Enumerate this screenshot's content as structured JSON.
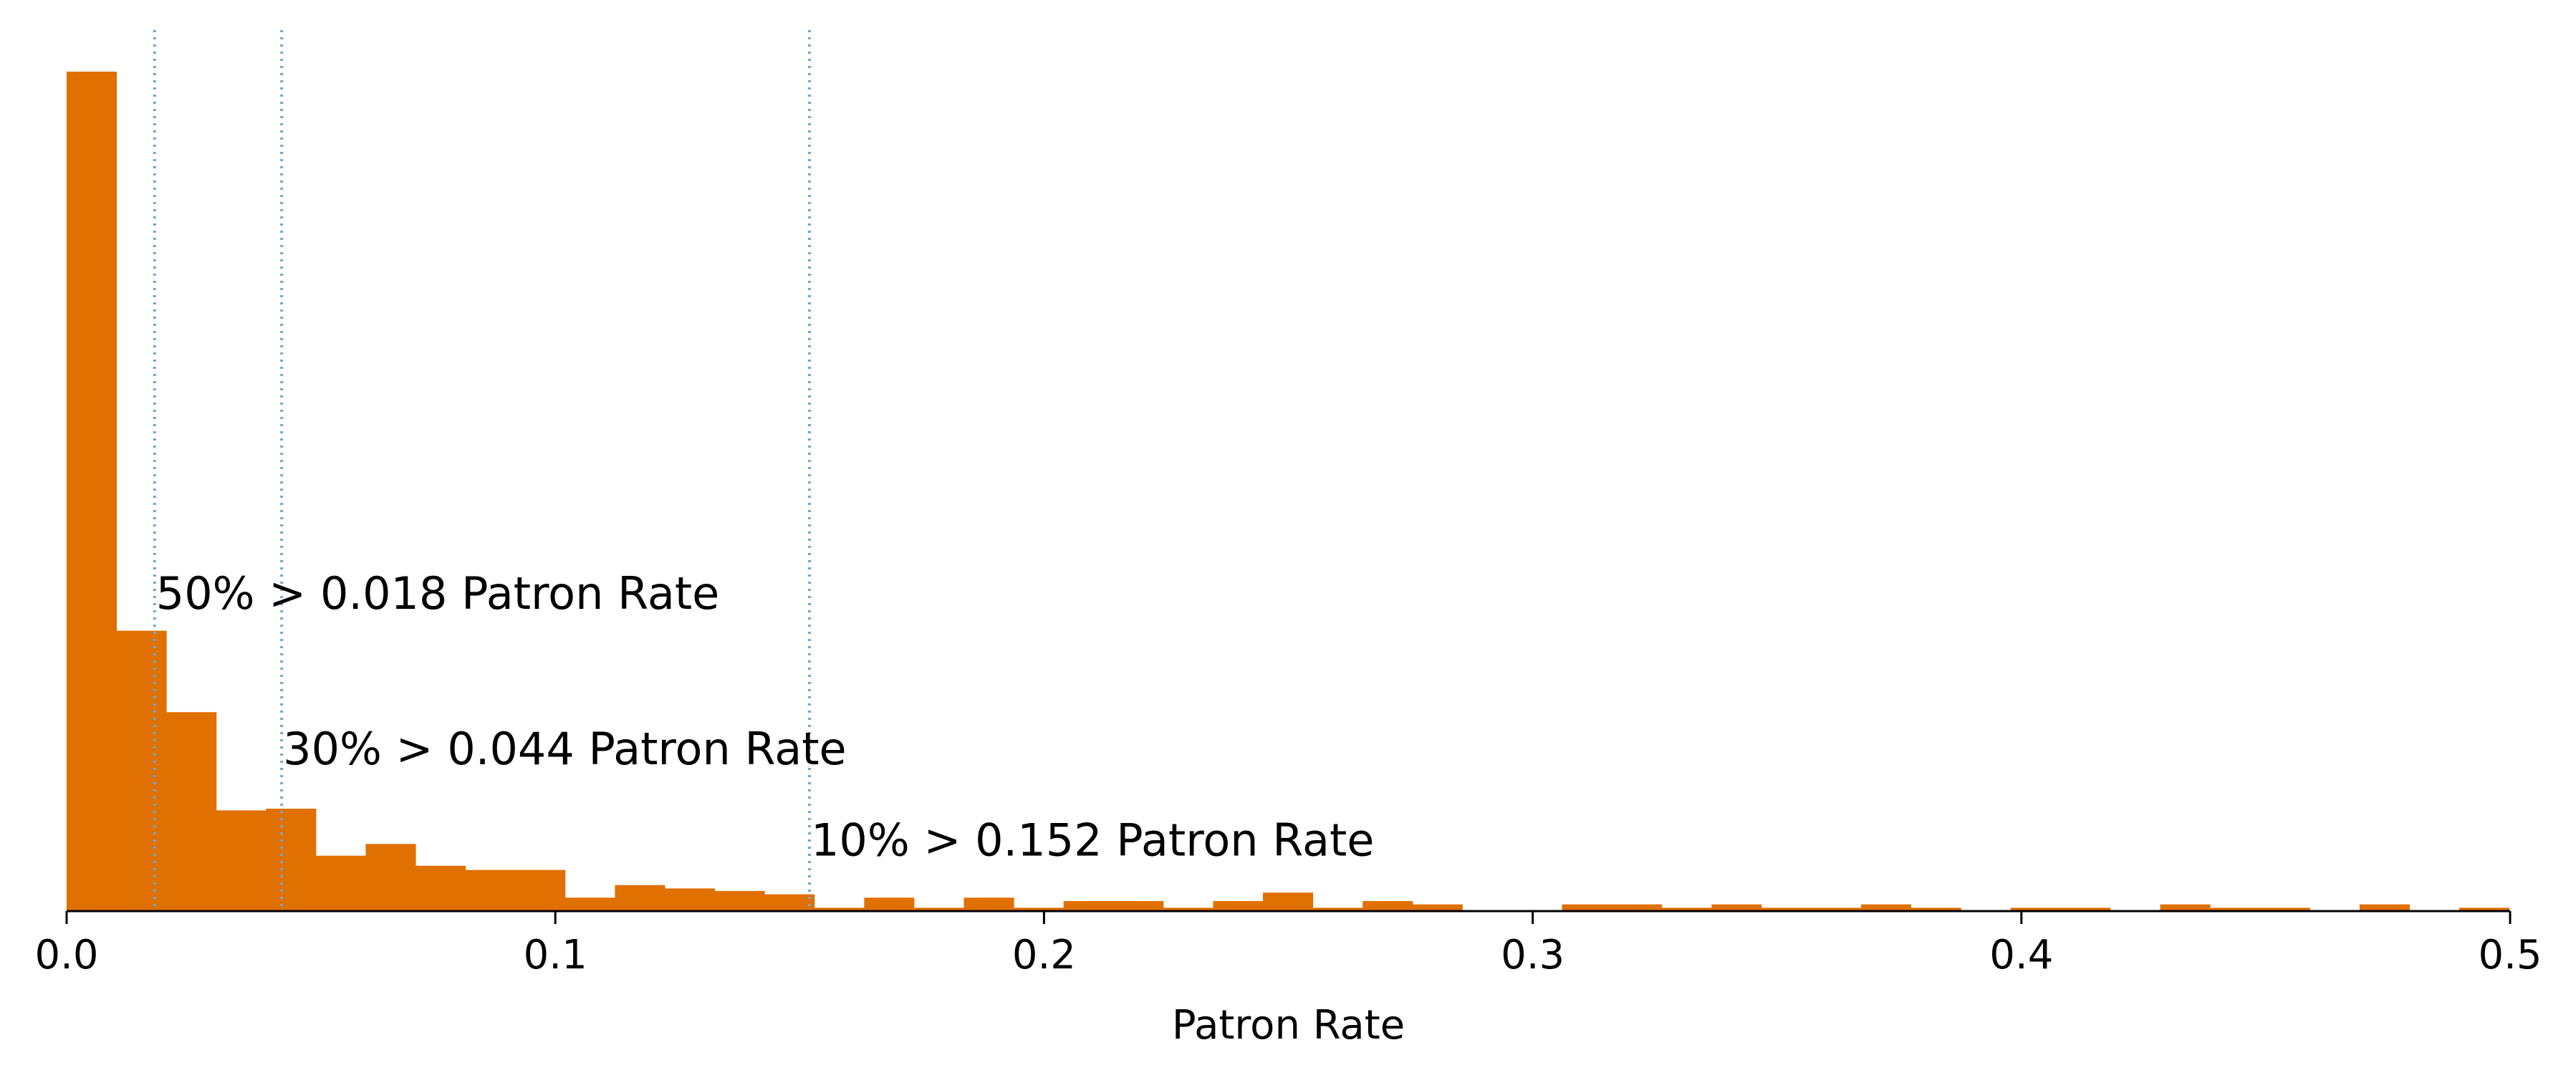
{
  "chart_data": {
    "type": "bar",
    "xlabel": "Patron Rate",
    "ylabel": "",
    "xlim": [
      0,
      0.5
    ],
    "ylim": [
      0,
      1.0
    ],
    "x_ticks": [
      0.0,
      0.1,
      0.2,
      0.3,
      0.4,
      0.5
    ],
    "x_tick_labels": [
      "0.0",
      "0.1",
      "0.2",
      "0.3",
      "0.4",
      "0.5"
    ],
    "y_axis_visible": false,
    "grid": false,
    "bar_color": "#e07000",
    "line_color": "#6fa8d6",
    "bin_width": 0.0102,
    "bin_start": 0.0,
    "values": [
      1.0,
      0.334,
      0.237,
      0.12,
      0.122,
      0.066,
      0.08,
      0.054,
      0.049,
      0.049,
      0.016,
      0.031,
      0.027,
      0.024,
      0.02,
      0.004,
      0.016,
      0.004,
      0.016,
      0.004,
      0.012,
      0.012,
      0.004,
      0.012,
      0.022,
      0.004,
      0.012,
      0.008,
      0,
      0,
      0.008,
      0.008,
      0.004,
      0.008,
      0.004,
      0.004,
      0.008,
      0.004,
      0,
      0.004,
      0.004,
      0,
      0.008,
      0.004,
      0.004,
      0,
      0.008,
      0,
      0.004,
      0
    ],
    "threshold_lines": [
      {
        "x": 0.018,
        "label": "50% > 0.018 Patron Rate",
        "label_y": 0.36
      },
      {
        "x": 0.044,
        "label": "30% > 0.044 Patron Rate",
        "label_y": 0.175
      },
      {
        "x": 0.152,
        "label": "10% > 0.152 Patron Rate",
        "label_y": 0.066
      }
    ]
  }
}
